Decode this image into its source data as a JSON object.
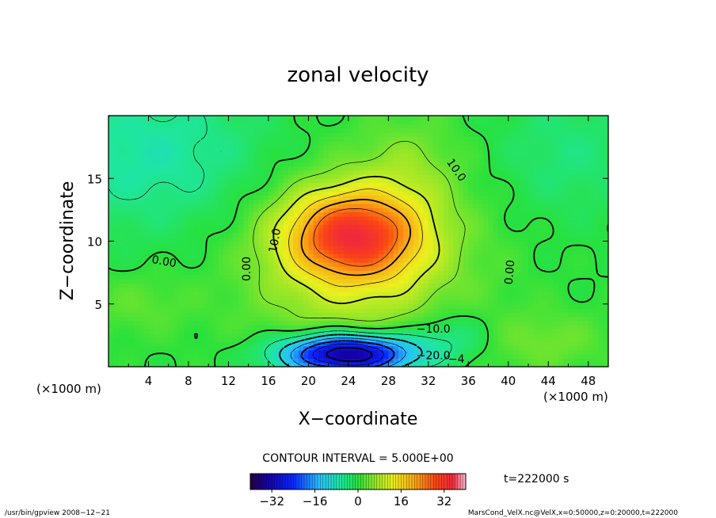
{
  "chart_data": {
    "type": "heatmap",
    "title": "zonal velocity",
    "xlabel": "X−coordinate",
    "ylabel": "Z−coordinate",
    "x_unit_left": "(×1000 m)",
    "x_unit_right": "(×1000 m)",
    "xlim": [
      0,
      50
    ],
    "ylim": [
      0,
      20
    ],
    "x_ticks": [
      4,
      8,
      12,
      16,
      20,
      24,
      28,
      32,
      36,
      40,
      44,
      48
    ],
    "y_ticks": [
      5,
      10,
      15
    ],
    "contour_interval_text": "CONTOUR INTERVAL = 5.000E+00",
    "time_text": "t=222000 s",
    "colorbar": {
      "min": -40,
      "max": 40,
      "tick_values": [
        -32,
        -16,
        0,
        16,
        32
      ],
      "tick_labels": [
        "−32",
        "−16",
        "0",
        "16",
        "32"
      ]
    },
    "contour_labels": [
      {
        "text": "0.00",
        "x": 5.5,
        "y": 8.1,
        "rotate": 10
      },
      {
        "text": "0.00",
        "x": 14.2,
        "y": 7.8,
        "rotate": -90
      },
      {
        "text": "10.0",
        "x": 17.0,
        "y": 10.0,
        "rotate": -80
      },
      {
        "text": "10.0",
        "x": 34.5,
        "y": 15.5,
        "rotate": 55
      },
      {
        "text": "0.00",
        "x": 40.5,
        "y": 7.5,
        "rotate": -85
      },
      {
        "text": "−10.0",
        "x": 32.5,
        "y": 2.7,
        "rotate": 0
      },
      {
        "text": "−20.0",
        "x": 32.5,
        "y": 0.6,
        "rotate": 0
      },
      {
        "text": "−4",
        "x": 34.8,
        "y": 0.3,
        "rotate": 0
      }
    ],
    "features": {
      "jet_max": 27,
      "jet_center": [
        24.5,
        10.5
      ],
      "low_level_min": -38,
      "low_level_center": [
        24,
        1
      ]
    }
  },
  "footer": {
    "left": "/usr/bin/gpview   2008−12−21",
    "right": "MarsCond_VelX.nc@VelX,x=0:50000,z=0:20000,t=222000"
  }
}
